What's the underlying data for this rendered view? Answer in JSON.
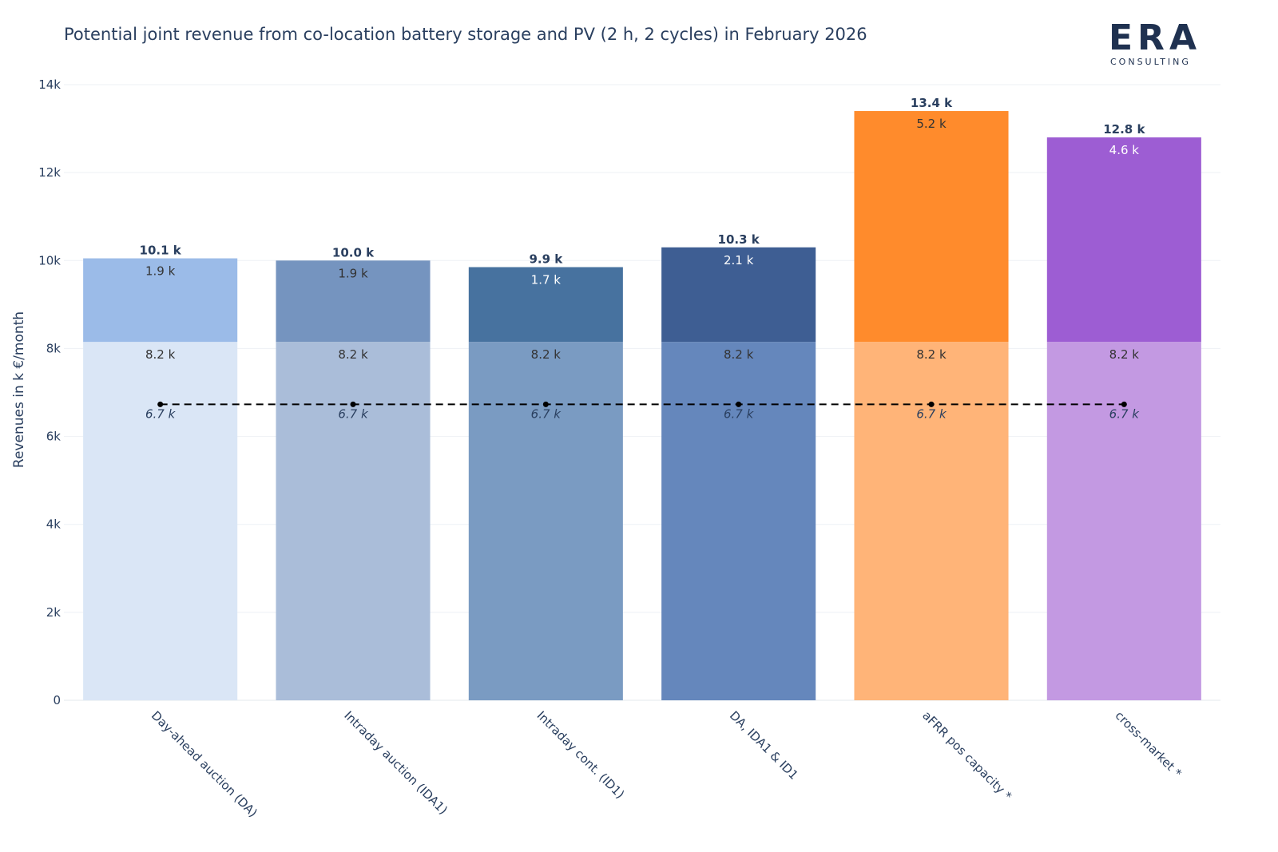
{
  "chart_data": {
    "type": "bar",
    "title": "Potential joint revenue from co-location battery storage and PV (2 h, 2 cycles) in February 2026",
    "ylabel": "Revenues in k €/month",
    "xlabel": "",
    "ylim": [
      0,
      14000
    ],
    "yticks": [
      0,
      2000,
      4000,
      6000,
      8000,
      10000,
      12000,
      14000
    ],
    "ytick_labels": [
      "0",
      "2k",
      "4k",
      "6k",
      "8k",
      "10k",
      "12k",
      "14k"
    ],
    "grid": true,
    "stacked": true,
    "categories": [
      "Day-ahead auction (DA)",
      "Intraday auction (IDA1)",
      "Intraday cont. (ID1)",
      "DA, IDA1 & ID1",
      "aFRR pos capacity *",
      "cross-market *"
    ],
    "series": [
      {
        "values": [
          8150,
          8150,
          8150,
          8150,
          8150,
          8150
        ],
        "labels": [
          "8.2 k",
          "8.2 k",
          "8.2 k",
          "8.2 k",
          "8.2 k",
          "8.2 k"
        ],
        "colors": [
          "#dae6f6",
          "#aabdd9",
          "#7a9bc2",
          "#6587bc",
          "#ffb478",
          "#c399e2"
        ]
      },
      {
        "values": [
          1900,
          1850,
          1700,
          2150,
          5250,
          4650
        ],
        "labels": [
          "1.9 k",
          "1.9 k",
          "1.7 k",
          "2.1 k",
          "5.2 k",
          "4.6 k"
        ],
        "colors": [
          "#9bbbe8",
          "#7594bf",
          "#47729f",
          "#3e5e93",
          "#ff8b2c",
          "#9d5dd3"
        ],
        "label_colors": [
          "#333333",
          "#333333",
          "#ffffff",
          "#ffffff",
          "#333333",
          "#ffffff"
        ]
      }
    ],
    "totals": [
      10050,
      10000,
      9850,
      10300,
      13400,
      12800
    ],
    "total_labels": [
      "10.1 k",
      "10.0 k",
      "9.9 k",
      "10.3 k",
      "13.4 k",
      "12.8 k"
    ],
    "reference": {
      "values": [
        6730,
        6730,
        6730,
        6730,
        6730,
        6730
      ],
      "labels": [
        "6.7 k",
        "6.7 k",
        "6.7 k",
        "6.7 k",
        "6.7 k",
        "6.7 k"
      ],
      "style": "dashed"
    }
  },
  "logo": {
    "text": "ERA",
    "subtitle": "CONSULTING",
    "color": "#1f3150"
  }
}
